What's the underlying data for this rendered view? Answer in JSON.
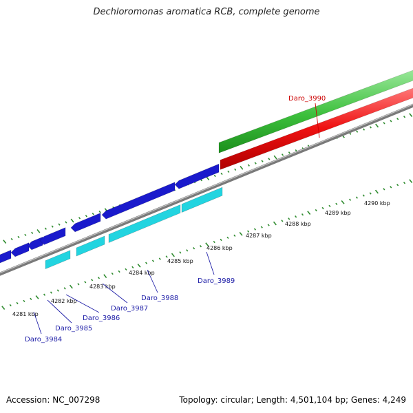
{
  "title": "Dechloromonas aromatica RCB, complete genome",
  "footer": {
    "accession": "Accession: NC_007298",
    "summary": "Topology: circular; Length: 4,501,104 bp; Genes: 4,249"
  },
  "colors": {
    "backbone": "#8c8c8c",
    "tick": "#2e8b2e",
    "forward_cds": "#1a1acc",
    "reverse_cds": "#22d4e0",
    "rna_strand": "#ee1111",
    "highlight_strand": "#33bb33",
    "label_forward": "#2020a8",
    "label_highlight": "#cc0000"
  },
  "kbp_labels": [
    "4281 kbp",
    "4282 kbp",
    "4283 kbp",
    "4284 kbp",
    "4285 kbp",
    "4286 kbp",
    "4287 kbp",
    "4288 kbp",
    "4289 kbp",
    "4290 kbp"
  ],
  "gene_labels": [
    {
      "text": "Daro_3984",
      "color": "label_forward"
    },
    {
      "text": "Daro_3985",
      "color": "label_forward"
    },
    {
      "text": "Daro_3986",
      "color": "label_forward"
    },
    {
      "text": "Daro_3987",
      "color": "label_forward"
    },
    {
      "text": "Daro_3988",
      "color": "label_forward"
    },
    {
      "text": "Daro_3989",
      "color": "label_forward"
    },
    {
      "text": "Daro_3990",
      "color": "label_highlight"
    }
  ]
}
